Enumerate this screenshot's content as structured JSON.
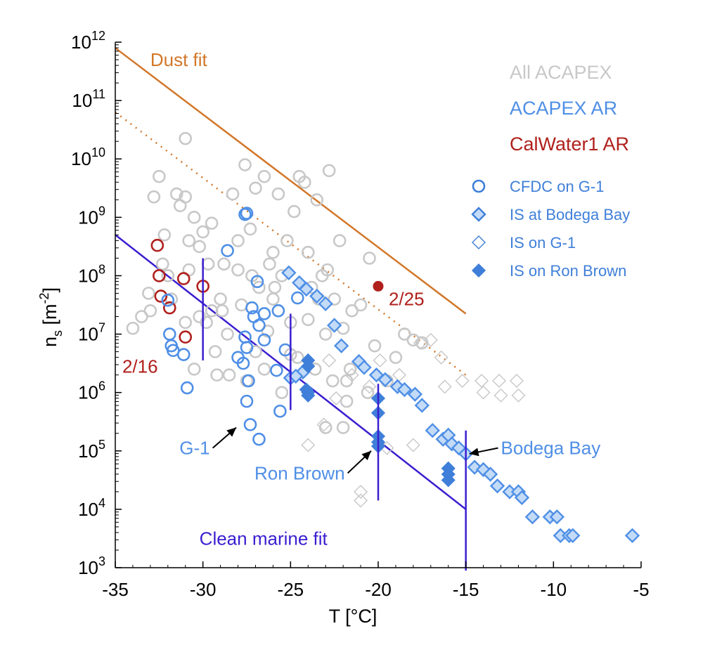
{
  "chart_data": {
    "type": "scatter",
    "xlabel": "T [°C]",
    "ylabel": {
      "base": "n",
      "sub": "s",
      "unit": "[m",
      "sup": "-2",
      "close": "]"
    },
    "xlim": [
      -35,
      -5
    ],
    "ylim_log10": [
      3,
      12
    ],
    "y_scale": "log",
    "x_ticks": [
      -35,
      -30,
      -25,
      -20,
      -15,
      -10,
      -5
    ],
    "y_ticks": [
      3,
      4,
      5,
      6,
      7,
      8,
      9,
      10,
      11,
      12
    ],
    "y_tick_base": "10",
    "colors": {
      "all_acapex": "#c8c8c8",
      "acapex_ar": "#4f8fe6",
      "calwater": "#b0201c",
      "dust": "#d2772a",
      "marine": "#3a1fd0",
      "legend_marker": "#3f7fd9"
    },
    "legend_labels": [
      {
        "text": "All ACAPEX",
        "color": "#c8c8c8"
      },
      {
        "text": "ACAPEX AR",
        "color": "#4f8fe6"
      },
      {
        "text": "CalWater1 AR",
        "color": "#b0201c"
      }
    ],
    "legend_markers": [
      {
        "text": "CFDC on G-1",
        "marker": "circle-open"
      },
      {
        "text": "IS at Bodega Bay",
        "marker": "diamond-light"
      },
      {
        "text": "IS on G-1",
        "marker": "diamond-open"
      },
      {
        "text": "IS on Ron Brown",
        "marker": "diamond-filled"
      }
    ],
    "fits": [
      {
        "name": "Dust fit",
        "style": "solid",
        "color": "#d2772a",
        "x": [
          -35,
          -15
        ],
        "log10_y": [
          11.9,
          7.35
        ]
      },
      {
        "name": "",
        "style": "dotted",
        "color": "#d2772a",
        "x": [
          -35,
          -15
        ],
        "log10_y": [
          10.8,
          6.3
        ]
      },
      {
        "name": "Clean marine fit",
        "style": "solid",
        "color": "#3a1fd0",
        "x": [
          -35,
          -15
        ],
        "log10_y": [
          8.7,
          4.0
        ]
      }
    ],
    "error_bars": [
      {
        "x": -30,
        "log10_y": [
          6.55,
          8.3
        ]
      },
      {
        "x": -25,
        "log10_y": [
          5.7,
          7.35
        ]
      },
      {
        "x": -20,
        "log10_y": [
          4.15,
          6.15
        ]
      },
      {
        "x": -15,
        "log10_y": [
          2.95,
          5.35
        ]
      }
    ],
    "series": [
      {
        "name": "CalWater1 AR",
        "marker": "circle-open",
        "points": [
          [
            -32.6,
            8.52
          ],
          [
            -32.5,
            8.0
          ],
          [
            -32.4,
            7.65
          ],
          [
            -31.9,
            7.45
          ],
          [
            -31.1,
            7.95
          ],
          [
            -31.0,
            6.95
          ],
          [
            -30.0,
            7.82
          ]
        ]
      },
      {
        "name": "CalWater1 AR",
        "marker": "circle-filled",
        "points": [
          [
            -20.0,
            7.82
          ]
        ]
      },
      {
        "name": "CFDC on G-1",
        "marker": "circle-open",
        "points": [
          [
            -32.0,
            7.58
          ],
          [
            -31.9,
            7.0
          ],
          [
            -31.8,
            6.8
          ],
          [
            -31.7,
            6.72
          ],
          [
            -31.1,
            6.65
          ],
          [
            -30.9,
            6.08
          ],
          [
            -28.6,
            8.43
          ],
          [
            -27.6,
            9.05
          ],
          [
            -27.5,
            9.07
          ],
          [
            -28.0,
            6.6
          ],
          [
            -27.7,
            6.5
          ],
          [
            -27.6,
            6.95
          ],
          [
            -27.5,
            6.77
          ],
          [
            -27.4,
            6.2
          ],
          [
            -27.5,
            5.85
          ],
          [
            -27.3,
            5.45
          ],
          [
            -27.2,
            7.45
          ],
          [
            -27.1,
            7.3
          ],
          [
            -26.9,
            7.9
          ],
          [
            -26.8,
            7.15
          ],
          [
            -26.5,
            7.35
          ],
          [
            -26.5,
            6.9
          ],
          [
            -26.8,
            5.2
          ],
          [
            -25.7,
            7.4
          ],
          [
            -25.8,
            6.38
          ],
          [
            -25.6,
            5.68
          ],
          [
            -25.3,
            6.73
          ],
          [
            -24.6,
            7.62
          ]
        ]
      },
      {
        "name": "IS at Bodega Bay",
        "marker": "diamond-light",
        "points": [
          [
            -25.1,
            8.05
          ],
          [
            -24.5,
            7.88
          ],
          [
            -24.1,
            7.77
          ],
          [
            -23.5,
            7.65
          ],
          [
            -23.0,
            7.52
          ],
          [
            -22.5,
            7.15
          ],
          [
            -22.1,
            6.8
          ],
          [
            -21.1,
            6.53
          ],
          [
            -20.8,
            6.43
          ],
          [
            -20.1,
            6.3
          ],
          [
            -19.6,
            6.22
          ],
          [
            -18.9,
            6.1
          ],
          [
            -18.5,
            6.05
          ],
          [
            -17.9,
            5.97
          ],
          [
            -17.5,
            5.78
          ],
          [
            -16.9,
            5.35
          ],
          [
            -16.3,
            5.2
          ],
          [
            -16.0,
            5.27
          ],
          [
            -15.8,
            5.12
          ],
          [
            -15.4,
            5.05
          ],
          [
            -15.0,
            4.95
          ],
          [
            -14.5,
            4.72
          ],
          [
            -14.0,
            4.68
          ],
          [
            -13.6,
            4.6
          ],
          [
            -13.2,
            4.4
          ],
          [
            -12.5,
            4.3
          ],
          [
            -12.0,
            4.3
          ],
          [
            -11.8,
            4.2
          ],
          [
            -11.2,
            3.87
          ],
          [
            -10.2,
            3.87
          ],
          [
            -9.8,
            3.87
          ],
          [
            -9.6,
            3.55
          ],
          [
            -9.1,
            3.55
          ],
          [
            -8.9,
            3.55
          ],
          [
            -5.5,
            3.55
          ],
          [
            -24.3,
            6.35
          ],
          [
            -25.0,
            6.25
          ],
          [
            -24.7,
            6.28
          ]
        ]
      },
      {
        "name": "IS on G-1",
        "marker": "diamond-open",
        "points": [
          [
            -24.0,
            5.1
          ],
          [
            -18.0,
            5.1
          ],
          [
            -16.2,
            6.1
          ],
          [
            -15.2,
            6.2
          ],
          [
            -14.1,
            6.2
          ],
          [
            -14.0,
            6.0
          ],
          [
            -13.1,
            6.2
          ],
          [
            -13.0,
            5.95
          ],
          [
            -12.1,
            6.2
          ],
          [
            -12.0,
            5.95
          ],
          [
            -21.0,
            4.3
          ],
          [
            -21.0,
            4.15
          ],
          [
            -19.5,
            5.05
          ],
          [
            -17.0,
            6.9
          ],
          [
            -17.6,
            6.85
          ],
          [
            -18.8,
            6.3
          ],
          [
            -19.9,
            6.55
          ],
          [
            -20.5,
            6.1
          ],
          [
            -21.5,
            6.3
          ],
          [
            -22.4,
            5.9
          ],
          [
            -23.1,
            5.45
          ],
          [
            -22.8,
            6.55
          ],
          [
            -16.4,
            6.6
          ]
        ]
      },
      {
        "name": "IS on Ron Brown",
        "marker": "diamond-filled",
        "points": [
          [
            -24.0,
            6.55
          ],
          [
            -24.0,
            6.45
          ],
          [
            -24.0,
            6.0
          ],
          [
            -24.0,
            5.95
          ],
          [
            -24.1,
            6.05
          ],
          [
            -20.0,
            5.9
          ],
          [
            -20.0,
            5.65
          ],
          [
            -20.0,
            5.25
          ],
          [
            -20.0,
            5.15
          ],
          [
            -20.0,
            5.08
          ],
          [
            -16.0,
            4.7
          ],
          [
            -16.0,
            4.6
          ],
          [
            -16.0,
            4.5
          ]
        ]
      },
      {
        "name": "All ACAPEX",
        "marker": "circle-open",
        "points": [
          [
            -34.0,
            7.1
          ],
          [
            -33.5,
            7.3
          ],
          [
            -33.1,
            7.7
          ],
          [
            -32.8,
            9.35
          ],
          [
            -32.5,
            9.7
          ],
          [
            -32.3,
            8.2
          ],
          [
            -32.2,
            8.7
          ],
          [
            -31.8,
            7.6
          ],
          [
            -31.5,
            9.4
          ],
          [
            -31.3,
            9.2
          ],
          [
            -31.0,
            9.35
          ],
          [
            -31.0,
            10.35
          ],
          [
            -30.8,
            8.1
          ],
          [
            -30.5,
            9.0
          ],
          [
            -30.2,
            8.5
          ],
          [
            -30.0,
            8.75
          ],
          [
            -29.8,
            7.2
          ],
          [
            -29.5,
            7.4
          ],
          [
            -29.3,
            6.7
          ],
          [
            -29.0,
            7.6
          ],
          [
            -28.8,
            8.2
          ],
          [
            -28.6,
            7.0
          ],
          [
            -28.3,
            9.4
          ],
          [
            -28.0,
            8.6
          ],
          [
            -27.8,
            7.5
          ],
          [
            -27.6,
            9.9
          ],
          [
            -27.5,
            6.2
          ],
          [
            -27.3,
            8.8
          ],
          [
            -27.0,
            9.5
          ],
          [
            -26.8,
            7.8
          ],
          [
            -26.5,
            9.7
          ],
          [
            -26.2,
            8.2
          ],
          [
            -26.0,
            7.6
          ],
          [
            -25.7,
            9.4
          ],
          [
            -25.5,
            8.0
          ],
          [
            -25.2,
            8.6
          ],
          [
            -25.0,
            7.2
          ],
          [
            -24.8,
            9.1
          ],
          [
            -24.5,
            9.7
          ],
          [
            -24.2,
            9.6
          ],
          [
            -24.0,
            8.4
          ],
          [
            -23.8,
            7.8
          ],
          [
            -23.5,
            9.3
          ],
          [
            -23.2,
            8.0
          ],
          [
            -23.0,
            7.0
          ],
          [
            -22.8,
            9.8
          ],
          [
            -22.5,
            7.6
          ],
          [
            -22.2,
            8.6
          ],
          [
            -22.0,
            7.1
          ],
          [
            -21.8,
            6.2
          ],
          [
            -21.5,
            7.4
          ],
          [
            -21.0,
            7.5
          ],
          [
            -20.5,
            8.3
          ],
          [
            -20.2,
            6.8
          ],
          [
            -19.5,
            6.2
          ],
          [
            -19.0,
            6.6
          ],
          [
            -18.5,
            7.0
          ],
          [
            -18.0,
            6.9
          ],
          [
            -17.5,
            6.85
          ],
          [
            -23.0,
            5.4
          ],
          [
            -22.0,
            5.4
          ],
          [
            -21.8,
            5.85
          ],
          [
            -25.0,
            6.65
          ],
          [
            -26.5,
            6.4
          ],
          [
            -28.5,
            6.3
          ],
          [
            -30.5,
            6.4
          ],
          [
            -31.0,
            7.2
          ],
          [
            -29.2,
            6.3
          ],
          [
            -27.0,
            6.7
          ],
          [
            -25.5,
            6.0
          ],
          [
            -26.0,
            8.4
          ],
          [
            -28.0,
            8.1
          ],
          [
            -29.5,
            8.9
          ],
          [
            -30.8,
            8.6
          ],
          [
            -32.0,
            8.0
          ],
          [
            -33.0,
            7.4
          ],
          [
            -24.6,
            6.6
          ],
          [
            -23.6,
            6.4
          ],
          [
            -22.6,
            6.2
          ],
          [
            -21.6,
            6.4
          ],
          [
            -20.6,
            6.0
          ],
          [
            -24.0,
            7.25
          ],
          [
            -23.4,
            7.6
          ],
          [
            -22.9,
            8.1
          ],
          [
            -26.3,
            7.05
          ],
          [
            -28.9,
            7.4
          ],
          [
            -30.2,
            7.3
          ],
          [
            -29.7,
            8.2
          ],
          [
            -27.2,
            8.0
          ],
          [
            -25.9,
            7.8
          ]
        ]
      }
    ],
    "annotations": [
      {
        "text": "Dust fit",
        "color": "#d2772a",
        "x": -33.0,
        "log10_y": 11.7,
        "anchor": "start"
      },
      {
        "text": "2/25",
        "color": "#b0201c",
        "x": -19.4,
        "log10_y": 7.6,
        "anchor": "start"
      },
      {
        "text": "2/16",
        "color": "#b0201c",
        "x": -34.6,
        "log10_y": 6.45,
        "anchor": "start"
      },
      {
        "text": "Clean marine fit",
        "color": "#3a1fd0",
        "x": -30.2,
        "log10_y": 3.5,
        "anchor": "start"
      },
      {
        "text": "G-1",
        "color": "#4f8fe6",
        "x": -29.6,
        "log10_y": 5.05,
        "anchor": "end",
        "arrow_to": [
          -28.1,
          5.4
        ]
      },
      {
        "text": "Ron Brown",
        "color": "#4f8fe6",
        "x": -21.9,
        "log10_y": 4.62,
        "anchor": "end",
        "arrow_to": [
          -20.4,
          5.0
        ]
      },
      {
        "text": "Bodega Bay",
        "color": "#4f8fe6",
        "x": -13.0,
        "log10_y": 5.05,
        "anchor": "start",
        "arrow_to": [
          -14.8,
          4.95
        ]
      }
    ]
  }
}
